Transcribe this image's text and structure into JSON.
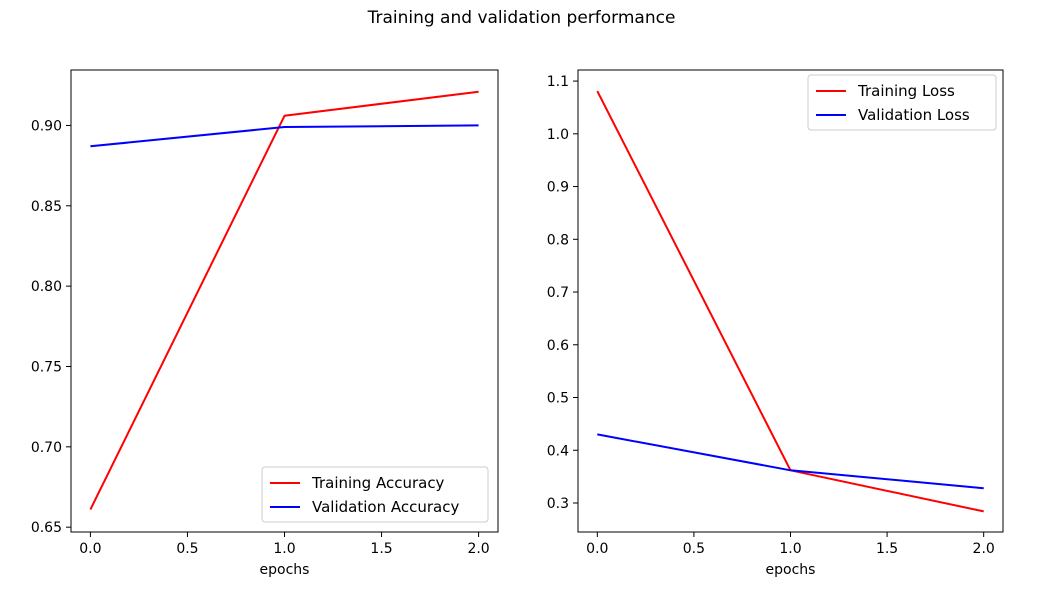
{
  "figure": {
    "title": "Training and validation performance"
  },
  "chart_data": [
    {
      "type": "line",
      "title": "",
      "xlabel": "epochs",
      "ylabel": "",
      "x": [
        0,
        1,
        2
      ],
      "xlim": [
        -0.1,
        2.1
      ],
      "ylim": [
        0.647,
        0.9345
      ],
      "xticks": [
        0.0,
        0.5,
        1.0,
        1.5,
        2.0
      ],
      "xtick_labels": [
        "0.0",
        "0.5",
        "1.0",
        "1.5",
        "2.0"
      ],
      "yticks": [
        0.65,
        0.7,
        0.75,
        0.8,
        0.85,
        0.9
      ],
      "ytick_labels": [
        "0.65",
        "0.70",
        "0.75",
        "0.80",
        "0.85",
        "0.90"
      ],
      "grid": false,
      "legend_position": "lower-right",
      "series": [
        {
          "name": "Training Accuracy",
          "color": "#ff0000",
          "values": [
            0.661,
            0.906,
            0.921
          ]
        },
        {
          "name": "Validation Accuracy",
          "color": "#0000ff",
          "values": [
            0.887,
            0.899,
            0.9
          ]
        }
      ]
    },
    {
      "type": "line",
      "title": "",
      "xlabel": "epochs",
      "ylabel": "",
      "x": [
        0,
        1,
        2
      ],
      "xlim": [
        -0.1,
        2.1
      ],
      "ylim": [
        0.245,
        1.121
      ],
      "xticks": [
        0.0,
        0.5,
        1.0,
        1.5,
        2.0
      ],
      "xtick_labels": [
        "0.0",
        "0.5",
        "1.0",
        "1.5",
        "2.0"
      ],
      "yticks": [
        0.3,
        0.4,
        0.5,
        0.6,
        0.7,
        0.8,
        0.9,
        1.0,
        1.1
      ],
      "ytick_labels": [
        "0.3",
        "0.4",
        "0.5",
        "0.6",
        "0.7",
        "0.8",
        "0.9",
        "1.0",
        "1.1"
      ],
      "grid": false,
      "legend_position": "upper-right",
      "series": [
        {
          "name": "Training Loss",
          "color": "#ff0000",
          "values": [
            1.081,
            0.362,
            0.284
          ]
        },
        {
          "name": "Validation Loss",
          "color": "#0000ff",
          "values": [
            0.43,
            0.362,
            0.328
          ]
        }
      ]
    }
  ]
}
